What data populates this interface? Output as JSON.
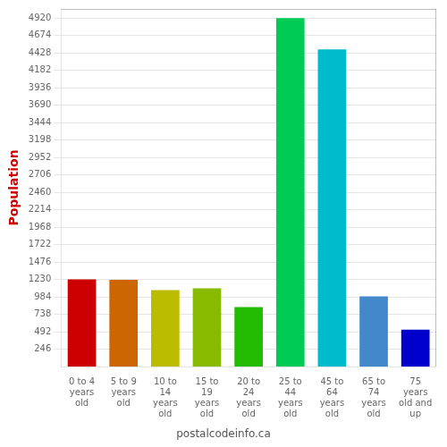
{
  "chart_data": {
    "type": "bar",
    "categories": [
      "0 to 4\nyears\nold",
      "5 to 9\nyears\nold",
      "10 to\n14\nyears\nold",
      "15 to\n19\nyears\nold",
      "20 to\n24\nyears\nold",
      "25 to\n44\nyears\nold",
      "45 to\n64\nyears\nold",
      "65 to\n74\nyears\nold",
      "75\nyears\nold and\nup"
    ],
    "values": [
      1230,
      1225,
      1080,
      1105,
      840,
      4920,
      4480,
      990,
      520
    ],
    "colors": [
      "#cc0000",
      "#cc6600",
      "#bbbb00",
      "#88bb00",
      "#22bb00",
      "#00cc55",
      "#00bbcc",
      "#4488cc",
      "#0000cc"
    ],
    "ylabel": "Population",
    "ylim": [
      0,
      5050
    ],
    "yticks": [
      246,
      492,
      738,
      984,
      1230,
      1476,
      1722,
      1968,
      2214,
      2460,
      2706,
      2952,
      3198,
      3444,
      3690,
      3936,
      4182,
      4428,
      4674,
      4920
    ],
    "grid": true,
    "annotations": [
      "postalcodeinfo.ca"
    ]
  }
}
